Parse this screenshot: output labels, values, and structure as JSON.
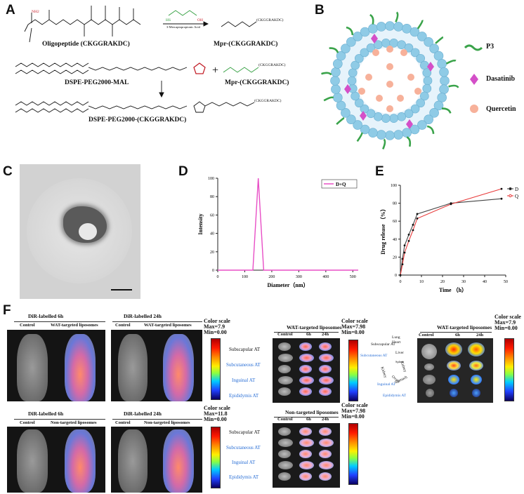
{
  "panels": {
    "A": {
      "label": "A",
      "oligopeptide": "Oligopeptide (CKGGRAKDC)",
      "mpr_product": "Mpr-(CKGGRAKDC)",
      "reagent": "3-Mercaptopropionic Acid",
      "dspe_mal": "DSPE-PEG2000-MAL",
      "mpr_reactant": "Mpr-(CKGGRAKDC)",
      "final_product": "DSPE-PEG2000-(CKGGRAKDC)",
      "ckggrakdc_tag": "(CKGGRAKDC)",
      "plus": "+",
      "nh2": "NH2",
      "hs": "HS",
      "oh": "OH"
    },
    "B": {
      "label": "B",
      "legend": [
        {
          "name": "P3",
          "icon": "green-ligand-icon",
          "color": "#3aa34a"
        },
        {
          "name": "Dasatinib",
          "icon": "magenta-diamond-icon",
          "color": "#d44fc8"
        },
        {
          "name": "Quercetin",
          "icon": "orange-dot-icon",
          "color": "#f7b19a"
        }
      ]
    },
    "C": {
      "label": "C"
    },
    "D": {
      "label": "D",
      "chart_data": {
        "type": "line",
        "series": [
          {
            "name": "D+Q",
            "color": "#e84fc6",
            "x": [
              0,
              130,
              150,
              170,
              520
            ],
            "y": [
              0,
              0,
              100,
              0,
              0
            ]
          }
        ],
        "xlabel": "Diameter（nm）",
        "ylabel": "Intensity",
        "xlim": [
          0,
          520
        ],
        "ylim": [
          0,
          100
        ],
        "xticks": [
          0,
          100,
          200,
          300,
          400,
          500
        ],
        "yticks": [
          0,
          20,
          40,
          60,
          80,
          100
        ],
        "legend": "top-right"
      }
    },
    "E": {
      "label": "E",
      "chart_data": {
        "type": "line",
        "series": [
          {
            "name": "D",
            "color": "#444444",
            "x": [
              0,
              1,
              2,
              4,
              6,
              8,
              24,
              48
            ],
            "y": [
              0,
              18,
              33,
              45,
              56,
              68,
              80,
              85
            ]
          },
          {
            "name": "Q",
            "color": "#e83a3a",
            "x": [
              0,
              1,
              2,
              4,
              6,
              8,
              24,
              48
            ],
            "y": [
              0,
              12,
              25,
              38,
              50,
              63,
              79,
              96
            ]
          }
        ],
        "xlabel": "Time （h）",
        "ylabel": "Drug release （%）",
        "xlim": [
          0,
          50
        ],
        "ylim": [
          0,
          100
        ],
        "xticks": [
          0,
          10,
          20,
          30,
          40,
          50
        ],
        "yticks": [
          0,
          20,
          40,
          60,
          80,
          100
        ],
        "legend": "top-right"
      }
    },
    "F": {
      "label": "F",
      "top_left": {
        "title": "DiR-labelled 6h",
        "col1": "Control",
        "col2": "WAT-targeted liposomes"
      },
      "top_mid": {
        "title": "DiR-labelled 24h",
        "col1": "Control",
        "col2": "WAT-targeted liposomes"
      },
      "top_scale": {
        "title": "Color scale",
        "max": "Max=7.9",
        "min": "Min=0.00"
      },
      "bot_left": {
        "title": "DiR-labelled 6h",
        "col1": "Control",
        "col2": "Non-targeted liposomes"
      },
      "bot_mid": {
        "title": "DiR-labelled 24h",
        "col1": "Control",
        "col2": "Non-targeted liposomes"
      },
      "bot_scale": {
        "title": "Color scale",
        "max": "Max=11.8",
        "min": "Min=0.00"
      },
      "tissue_labels": [
        "Subscapular AT",
        "Subcutaneous AT",
        "Inguinal AT",
        "Epididymis AT"
      ],
      "wat_dish": {
        "title": "WAT-targeted liposomes",
        "cols": [
          "Control",
          "6h",
          "24h"
        ]
      },
      "wat_scale": {
        "title": "Color scale",
        "max": "Max=7.98",
        "min": "Min=0.00"
      },
      "non_dish": {
        "title": "Non-targeted liposomes",
        "cols": [
          "Control",
          "6h",
          "24h"
        ]
      },
      "non_scale": {
        "title": "Color scale",
        "max": "Max=7.98",
        "min": "Min=0.00"
      },
      "organ_labels": [
        "Lung",
        "Heart",
        "Subscapular AT",
        "Liver",
        "Subcutaneous AT",
        "Spleen",
        "Kidney",
        "Kidney",
        "Ovary",
        "Inguinal AT",
        "Stomach",
        "Epididymis AT"
      ],
      "right_panel": {
        "title": "WAT-targeted liposomes",
        "cols": [
          "Control",
          "6h",
          "24h"
        ]
      },
      "right_scale": {
        "title": "Color scale",
        "max": "Max=7.9",
        "min": "Min=0.00"
      }
    }
  }
}
